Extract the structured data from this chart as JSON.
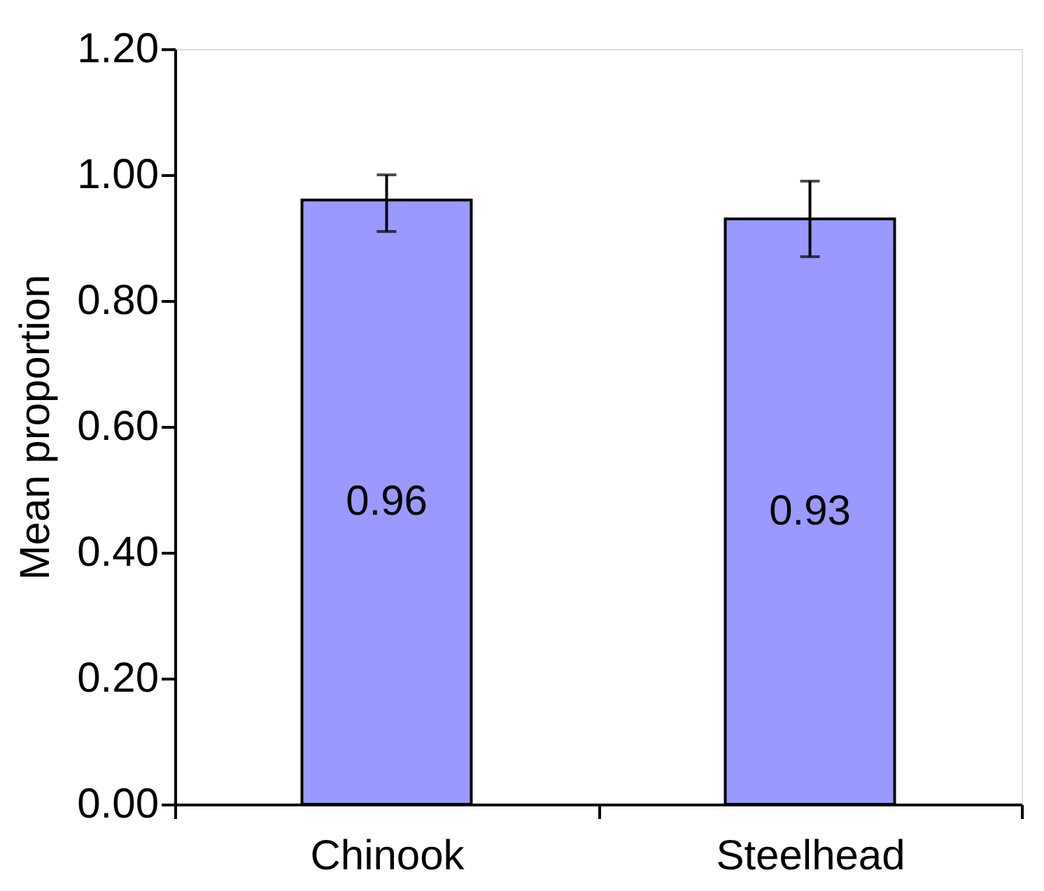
{
  "chart_data": {
    "type": "bar",
    "ylabel": "Mean proportion",
    "categories": [
      "Chinook",
      "Steelhead"
    ],
    "values": [
      0.96,
      0.93
    ],
    "color": "#9999ff",
    "errors": [
      [
        0.91,
        1.0
      ],
      [
        0.87,
        0.99
      ]
    ],
    "data_labels": true,
    "ylim": [
      0,
      1.2
    ],
    "yticks": [
      {
        "value": 0,
        "label": "0.00"
      },
      {
        "value": 0.2,
        "label": "0.20"
      },
      {
        "value": 0.4,
        "label": "0.40"
      },
      {
        "value": 0.6,
        "label": "0.60"
      },
      {
        "value": 0.8,
        "label": "0.80"
      },
      {
        "value": 1.0,
        "label": "1.00"
      },
      {
        "value": 1.2,
        "label": "1.20"
      }
    ],
    "grid": false
  }
}
